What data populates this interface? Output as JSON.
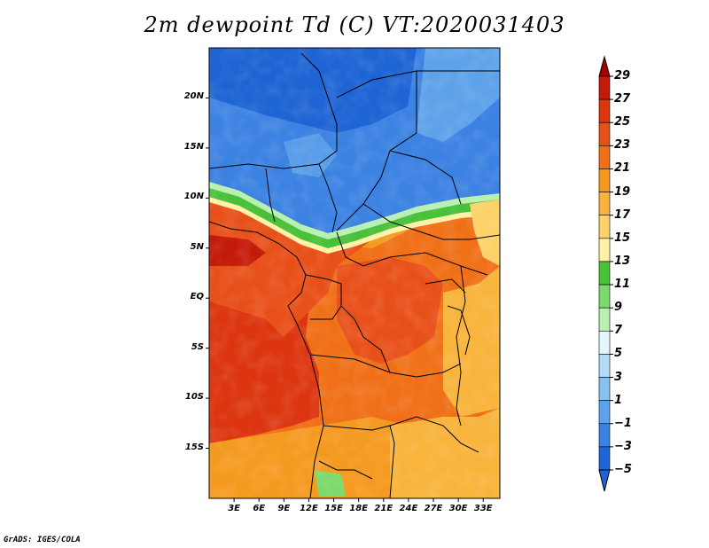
{
  "title": "2m dewpoint Td (C) VT:2020031403",
  "credit": "GrADS: IGES/COLA",
  "map": {
    "projection": "latlon",
    "lon_range": [
      0,
      35
    ],
    "lat_range": [
      -20,
      25
    ],
    "lat_ticks": [
      {
        "value": 20,
        "label": "20N"
      },
      {
        "value": 15,
        "label": "15N"
      },
      {
        "value": 10,
        "label": "10N"
      },
      {
        "value": 5,
        "label": "5N"
      },
      {
        "value": 0,
        "label": "EQ"
      },
      {
        "value": -5,
        "label": "5S"
      },
      {
        "value": -10,
        "label": "10S"
      },
      {
        "value": -15,
        "label": "15S"
      }
    ],
    "lon_ticks": [
      {
        "value": 3,
        "label": "3E"
      },
      {
        "value": 6,
        "label": "6E"
      },
      {
        "value": 9,
        "label": "9E"
      },
      {
        "value": 12,
        "label": "12E"
      },
      {
        "value": 15,
        "label": "15E"
      },
      {
        "value": 18,
        "label": "18E"
      },
      {
        "value": 21,
        "label": "21E"
      },
      {
        "value": 24,
        "label": "24E"
      },
      {
        "value": 27,
        "label": "27E"
      },
      {
        "value": 30,
        "label": "30E"
      },
      {
        "value": 33,
        "label": "33E"
      }
    ]
  },
  "colorbar": {
    "levels": [
      {
        "label": "29",
        "color": "#a50000"
      },
      {
        "label": "27",
        "color": "#c41a0a"
      },
      {
        "label": "25",
        "color": "#dc3510"
      },
      {
        "label": "23",
        "color": "#e8501a"
      },
      {
        "label": "21",
        "color": "#f07018"
      },
      {
        "label": "19",
        "color": "#f59a20"
      },
      {
        "label": "17",
        "color": "#f8b43c"
      },
      {
        "label": "15",
        "color": "#fcd36a"
      },
      {
        "label": "13",
        "color": "#fff2a8"
      },
      {
        "label": "11",
        "color": "#48c038"
      },
      {
        "label": "9",
        "color": "#7cda6c"
      },
      {
        "label": "7",
        "color": "#b8f0b0"
      },
      {
        "label": "5",
        "color": "#e4f6fc"
      },
      {
        "label": "3",
        "color": "#b4dcf8"
      },
      {
        "label": "1",
        "color": "#88c0f0"
      },
      {
        "label": "−1",
        "color": "#5ea2ea"
      },
      {
        "label": "−3",
        "color": "#3c82e2"
      },
      {
        "label": "−5",
        "color": "#1e64d4"
      }
    ],
    "top_color": "#a50000",
    "bottom_color": "#1e64d4"
  }
}
